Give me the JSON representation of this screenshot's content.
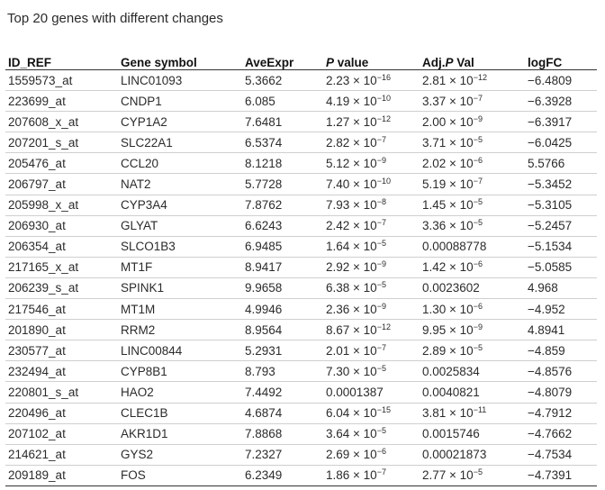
{
  "caption": "Top 20 genes with different changes",
  "headers": {
    "id_ref": "ID_REF",
    "gene_symbol": "Gene symbol",
    "ave_expr": "AveExpr",
    "p_value_italic": "P",
    "p_value_rest": " value",
    "adj_p_prefix": "Adj.",
    "adj_p_italic": "P",
    "adj_p_rest": " Val",
    "logfc": "logFC"
  },
  "rows": [
    {
      "id": "1559573_at",
      "gene": "LINC01093",
      "ave": "5.3662",
      "p": {
        "m": "2.23 × 10",
        "e": "−16"
      },
      "adj": {
        "m": "2.81 × 10",
        "e": "−12"
      },
      "logfc": "−6.4809"
    },
    {
      "id": "223699_at",
      "gene": "CNDP1",
      "ave": "6.085",
      "p": {
        "m": "4.19 × 10",
        "e": "−10"
      },
      "adj": {
        "m": "3.37 × 10",
        "e": "−7"
      },
      "logfc": "−6.3928"
    },
    {
      "id": "207608_x_at",
      "gene": "CYP1A2",
      "ave": "7.6481",
      "p": {
        "m": "1.27 × 10",
        "e": "−12"
      },
      "adj": {
        "m": "2.00 × 10",
        "e": "−9"
      },
      "logfc": "−6.3917"
    },
    {
      "id": "207201_s_at",
      "gene": "SLC22A1",
      "ave": "6.5374",
      "p": {
        "m": "2.82 × 10",
        "e": "−7"
      },
      "adj": {
        "m": "3.71 × 10",
        "e": "−5"
      },
      "logfc": "−6.0425"
    },
    {
      "id": "205476_at",
      "gene": "CCL20",
      "ave": "8.1218",
      "p": {
        "m": "5.12 × 10",
        "e": "−9"
      },
      "adj": {
        "m": "2.02 × 10",
        "e": "−6"
      },
      "logfc": "5.5766"
    },
    {
      "id": "206797_at",
      "gene": "NAT2",
      "ave": "5.7728",
      "p": {
        "m": "7.40 × 10",
        "e": "−10"
      },
      "adj": {
        "m": "5.19 × 10",
        "e": "−7"
      },
      "logfc": "−5.3452"
    },
    {
      "id": "205998_x_at",
      "gene": "CYP3A4",
      "ave": "7.8762",
      "p": {
        "m": "7.93 × 10",
        "e": "−8"
      },
      "adj": {
        "m": "1.45 × 10",
        "e": "−5"
      },
      "logfc": "−5.3105"
    },
    {
      "id": "206930_at",
      "gene": "GLYAT",
      "ave": "6.6243",
      "p": {
        "m": "2.42 × 10",
        "e": "−7"
      },
      "adj": {
        "m": "3.36 × 10",
        "e": "−5"
      },
      "logfc": "−5.2457"
    },
    {
      "id": "206354_at",
      "gene": "SLCO1B3",
      "ave": "6.9485",
      "p": {
        "m": "1.64 × 10",
        "e": "−5"
      },
      "adj": {
        "m": "0.00088778",
        "e": ""
      },
      "logfc": "−5.1534"
    },
    {
      "id": "217165_x_at",
      "gene": "MT1F",
      "ave": "8.9417",
      "p": {
        "m": "2.92 × 10",
        "e": "−9"
      },
      "adj": {
        "m": "1.42 × 10",
        "e": "−6"
      },
      "logfc": "−5.0585"
    },
    {
      "id": "206239_s_at",
      "gene": "SPINK1",
      "ave": "9.9658",
      "p": {
        "m": "6.38 × 10",
        "e": "−5"
      },
      "adj": {
        "m": "0.0023602",
        "e": ""
      },
      "logfc": "4.968"
    },
    {
      "id": "217546_at",
      "gene": "MT1M",
      "ave": "4.9946",
      "p": {
        "m": "2.36 × 10",
        "e": "−9"
      },
      "adj": {
        "m": "1.30 × 10",
        "e": "−6"
      },
      "logfc": "−4.952"
    },
    {
      "id": "201890_at",
      "gene": "RRM2",
      "ave": "8.9564",
      "p": {
        "m": "8.67 × 10",
        "e": "−12"
      },
      "adj": {
        "m": "9.95 × 10",
        "e": "−9"
      },
      "logfc": "4.8941"
    },
    {
      "id": "230577_at",
      "gene": "LINC00844",
      "ave": "5.2931",
      "p": {
        "m": "2.01 × 10",
        "e": "−7"
      },
      "adj": {
        "m": "2.89 × 10",
        "e": "−5"
      },
      "logfc": "−4.859"
    },
    {
      "id": "232494_at",
      "gene": "CYP8B1",
      "ave": "8.793",
      "p": {
        "m": "7.30 × 10",
        "e": "−5"
      },
      "adj": {
        "m": "0.0025834",
        "e": ""
      },
      "logfc": "−4.8576"
    },
    {
      "id": "220801_s_at",
      "gene": "HAO2",
      "ave": "7.4492",
      "p": {
        "m": "0.0001387",
        "e": ""
      },
      "adj": {
        "m": "0.0040821",
        "e": ""
      },
      "logfc": "−4.8079"
    },
    {
      "id": "220496_at",
      "gene": "CLEC1B",
      "ave": "4.6874",
      "p": {
        "m": "6.04 × 10",
        "e": "−15"
      },
      "adj": {
        "m": "3.81 × 10",
        "e": "−11"
      },
      "logfc": "−4.7912"
    },
    {
      "id": "207102_at",
      "gene": "AKR1D1",
      "ave": "7.8868",
      "p": {
        "m": "3.64 × 10",
        "e": "−5"
      },
      "adj": {
        "m": "0.0015746",
        "e": ""
      },
      "logfc": "−4.7662"
    },
    {
      "id": "214621_at",
      "gene": "GYS2",
      "ave": "7.2327",
      "p": {
        "m": "2.69 × 10",
        "e": "−6"
      },
      "adj": {
        "m": "0.00021873",
        "e": ""
      },
      "logfc": "−4.7534"
    },
    {
      "id": "209189_at",
      "gene": "FOS",
      "ave": "6.2349",
      "p": {
        "m": "1.86 × 10",
        "e": "−7"
      },
      "adj": {
        "m": "2.77 × 10",
        "e": "−5"
      },
      "logfc": "−4.7391"
    }
  ]
}
